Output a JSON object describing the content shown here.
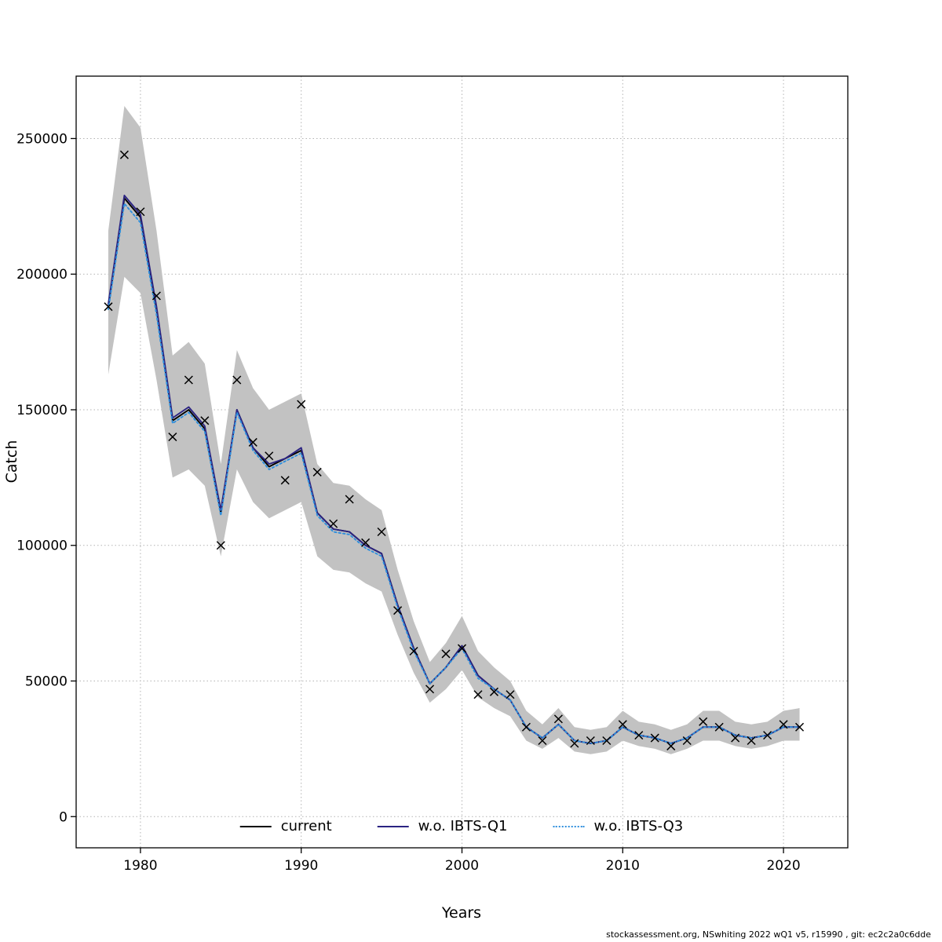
{
  "figure": {
    "background": "#ffffff",
    "plot_border_color": "#000000",
    "grid_color": "#b3b3b3"
  },
  "chart_data": {
    "type": "line",
    "title": "",
    "xlabel": "Years",
    "ylabel": "Catch",
    "xlim": [
      1976,
      2024
    ],
    "ylim": [
      -11500,
      273000
    ],
    "xticks": [
      1980,
      1990,
      2000,
      2010,
      2020
    ],
    "yticks": [
      0,
      50000,
      100000,
      150000,
      200000,
      250000
    ],
    "grid": true,
    "legend_position": "bottom-center-inside",
    "marker": "x",
    "marker_color": "#000000",
    "years": [
      1978,
      1979,
      1980,
      1981,
      1982,
      1983,
      1984,
      1985,
      1986,
      1987,
      1988,
      1989,
      1990,
      1991,
      1992,
      1993,
      1994,
      1995,
      1996,
      1997,
      1998,
      1999,
      2000,
      2001,
      2002,
      2003,
      2004,
      2005,
      2006,
      2007,
      2008,
      2009,
      2010,
      2011,
      2012,
      2013,
      2014,
      2015,
      2016,
      2017,
      2018,
      2019,
      2020,
      2021
    ],
    "observed_catch": [
      188000,
      244000,
      223000,
      192000,
      140000,
      161000,
      146000,
      100000,
      161000,
      138000,
      133000,
      124000,
      152000,
      127000,
      108000,
      117000,
      101000,
      105000,
      76000,
      61000,
      47000,
      60000,
      62000,
      45000,
      46000,
      45000,
      33000,
      28000,
      36000,
      27000,
      28000,
      28000,
      34000,
      30000,
      29000,
      26000,
      28000,
      35000,
      33000,
      29000,
      28000,
      30000,
      34000,
      33000
    ],
    "confidence_band": {
      "color": "#c2c2c2",
      "lower": [
        163000,
        199000,
        193000,
        161000,
        125000,
        128000,
        122000,
        96000,
        128000,
        116000,
        110000,
        113000,
        116000,
        96000,
        91000,
        90000,
        86000,
        83000,
        67000,
        53000,
        42000,
        47000,
        54000,
        44000,
        40000,
        37000,
        28000,
        25000,
        29000,
        24000,
        23000,
        24000,
        28000,
        26000,
        25000,
        23000,
        25000,
        28000,
        28000,
        26000,
        25000,
        26000,
        28000,
        28000
      ],
      "upper": [
        216000,
        262000,
        254000,
        216000,
        170000,
        175000,
        167000,
        130000,
        172000,
        158000,
        150000,
        153000,
        156000,
        130000,
        123000,
        122000,
        117000,
        113000,
        91000,
        72000,
        57000,
        64000,
        74000,
        61000,
        55000,
        50000,
        39000,
        34000,
        40000,
        33000,
        32000,
        33000,
        39000,
        35000,
        34000,
        32000,
        34000,
        39000,
        39000,
        35000,
        34000,
        35000,
        39000,
        40000
      ]
    },
    "series": [
      {
        "name": "current",
        "color": "#000000",
        "style": "solid",
        "values": [
          188000,
          228000,
          221000,
          187000,
          146000,
          150000,
          143000,
          112000,
          150000,
          136000,
          129000,
          132000,
          135000,
          112000,
          106000,
          105000,
          100000,
          97000,
          78000,
          62000,
          49000,
          55000,
          63000,
          52000,
          47000,
          43000,
          33000,
          29000,
          34000,
          28000,
          27000,
          28000,
          33000,
          30000,
          29000,
          27000,
          29000,
          33000,
          33000,
          30000,
          29000,
          30000,
          33000,
          33000
        ]
      },
      {
        "name": "w.o. IBTS-Q1",
        "color": "#2b2382",
        "style": "solid",
        "values": [
          189000,
          229000,
          222000,
          188000,
          147000,
          151000,
          144000,
          113000,
          150000,
          136000,
          130000,
          132000,
          136000,
          112000,
          106000,
          105000,
          100000,
          97000,
          78000,
          62000,
          49000,
          55000,
          63000,
          52000,
          47000,
          43000,
          33000,
          29000,
          34000,
          28000,
          27000,
          28000,
          33000,
          30000,
          29000,
          27000,
          29000,
          33000,
          33000,
          30000,
          29000,
          30000,
          33000,
          33000
        ]
      },
      {
        "name": "w.o. IBTS-Q3",
        "color": "#2f8fdd",
        "style": "dotted",
        "values": [
          187000,
          226000,
          219000,
          185000,
          145000,
          149000,
          142000,
          111000,
          149000,
          135000,
          128000,
          131000,
          134000,
          111000,
          105000,
          104000,
          99000,
          96000,
          77000,
          61000,
          49000,
          55000,
          62000,
          51000,
          47000,
          43000,
          33000,
          29000,
          34000,
          28000,
          27000,
          28000,
          33000,
          30000,
          29000,
          27000,
          29000,
          33000,
          33000,
          30000,
          29000,
          30000,
          33000,
          33000
        ]
      }
    ]
  },
  "footer": {
    "text": "stockassessment.org, NSwhiting 2022 wQ1 v5, r15990 , git: ec2c2a0c6dde"
  }
}
